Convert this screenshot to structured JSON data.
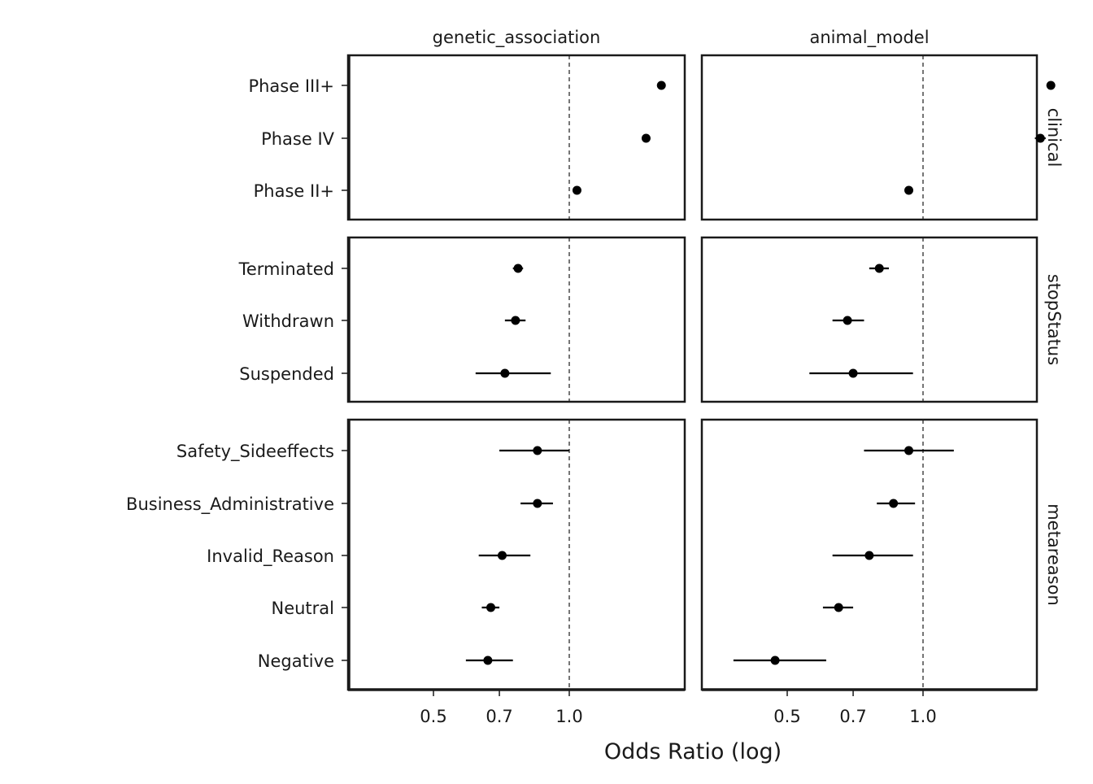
{
  "chart_data": {
    "type": "scatter",
    "subtype": "faceted forest plot (point estimate with confidence interval)",
    "xlabel": "Odds Ratio (log)",
    "x_scale": "log",
    "xlim": [
      0.3,
      2.0
    ],
    "x_ticks": [
      0.5,
      0.7,
      1.0
    ],
    "x_tick_labels": [
      "0.5",
      "0.7",
      "1.0"
    ],
    "reference_line": 1.0,
    "columns": [
      "genetic_association",
      "animal_model"
    ],
    "rows": [
      {
        "name": "clinical",
        "categories": [
          "Phase III+",
          "Phase IV",
          "Phase II+"
        ],
        "panels": [
          {
            "column": "genetic_association",
            "estimates": [
              1.6,
              1.48,
              1.04
            ],
            "lower": [
              1.58,
              1.46,
              1.03
            ],
            "upper": [
              1.62,
              1.5,
              1.05
            ]
          },
          {
            "column": "animal_model",
            "estimates": [
              1.92,
              1.82,
              0.93
            ],
            "lower": [
              1.89,
              1.77,
              0.92
            ],
            "upper": [
              1.95,
              1.87,
              0.94
            ]
          }
        ]
      },
      {
        "name": "stopStatus",
        "categories": [
          "Terminated",
          "Withdrawn",
          "Suspended"
        ],
        "panels": [
          {
            "column": "genetic_association",
            "estimates": [
              0.77,
              0.76,
              0.72
            ],
            "lower": [
              0.75,
              0.72,
              0.62
            ],
            "upper": [
              0.79,
              0.8,
              0.91
            ]
          },
          {
            "column": "animal_model",
            "estimates": [
              0.8,
              0.68,
              0.7
            ],
            "lower": [
              0.76,
              0.63,
              0.56
            ],
            "upper": [
              0.84,
              0.74,
              0.95
            ]
          }
        ]
      },
      {
        "name": "metareason",
        "categories": [
          "Safety_Sideeffects",
          "Business_Administrative",
          "Invalid_Reason",
          "Neutral",
          "Negative"
        ],
        "panels": [
          {
            "column": "genetic_association",
            "estimates": [
              0.85,
              0.85,
              0.71,
              0.67,
              0.66
            ],
            "lower": [
              0.7,
              0.78,
              0.63,
              0.64,
              0.59
            ],
            "upper": [
              1.0,
              0.92,
              0.82,
              0.7,
              0.75
            ]
          },
          {
            "column": "animal_model",
            "estimates": [
              0.93,
              0.86,
              0.76,
              0.65,
              0.47
            ],
            "lower": [
              0.74,
              0.79,
              0.63,
              0.6,
              0.38
            ],
            "upper": [
              1.17,
              0.96,
              0.95,
              0.7,
              0.61
            ]
          }
        ]
      }
    ],
    "legend": "none",
    "grid": false
  }
}
